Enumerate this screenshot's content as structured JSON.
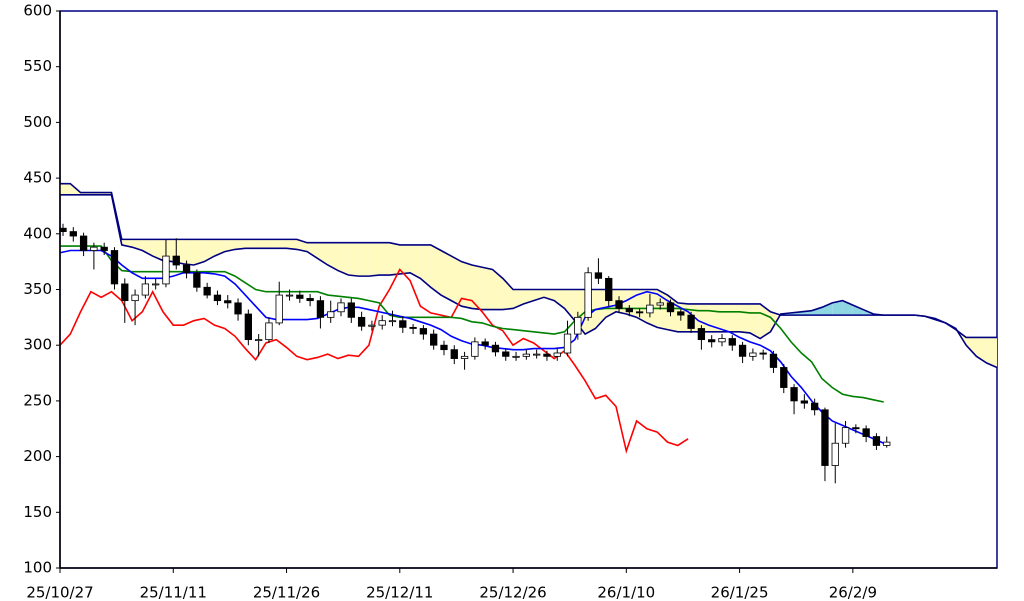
{
  "chart_data": {
    "type": "candlestick",
    "categories": [
      "25/10/27",
      null,
      null,
      null,
      null,
      null,
      null,
      null,
      null,
      null,
      null,
      "25/11/11",
      null,
      null,
      null,
      null,
      null,
      null,
      null,
      null,
      null,
      null,
      "25/11/26",
      null,
      null,
      null,
      null,
      null,
      null,
      null,
      null,
      null,
      null,
      "25/12/11",
      null,
      null,
      null,
      null,
      null,
      null,
      null,
      null,
      null,
      null,
      "25/12/26",
      null,
      null,
      null,
      null,
      null,
      null,
      null,
      null,
      null,
      null,
      "26/1/10",
      null,
      null,
      null,
      null,
      null,
      null,
      null,
      null,
      null,
      null,
      "26/1/25",
      null,
      null,
      null,
      null,
      null,
      null,
      null,
      null,
      null,
      null,
      "26/2/9",
      null,
      null,
      null,
      null,
      null,
      null,
      null,
      null,
      null,
      null,
      null,
      null,
      null,
      null
    ],
    "ylim": [
      100,
      600
    ],
    "yticks": [
      100,
      150,
      200,
      250,
      300,
      350,
      400,
      450,
      500,
      550,
      600
    ],
    "candles": {
      "up_color": "#ffffff",
      "down_color": "#000000",
      "edge_color": "#000000",
      "open": [
        405,
        402,
        398,
        385,
        388,
        385,
        355,
        340,
        345,
        355,
        355,
        380,
        372,
        365,
        352,
        345,
        340,
        338,
        328,
        305,
        305,
        320,
        345,
        345,
        342,
        340,
        325,
        330,
        338,
        325,
        317,
        318,
        322,
        322,
        316,
        315,
        310,
        300,
        296,
        288,
        290,
        303,
        300,
        294,
        290,
        290,
        292,
        292,
        290,
        293,
        310,
        325,
        365,
        360,
        340,
        333,
        330,
        329,
        336,
        338,
        330,
        327,
        315,
        305,
        303,
        306,
        300,
        290,
        293,
        292,
        280,
        262,
        250,
        248,
        242,
        192,
        212,
        226,
        225,
        218,
        210
      ],
      "high": [
        409,
        406,
        401,
        392,
        392,
        388,
        360,
        350,
        362,
        360,
        395,
        396,
        376,
        368,
        356,
        349,
        345,
        342,
        332,
        310,
        325,
        357,
        350,
        349,
        346,
        344,
        340,
        342,
        342,
        330,
        322,
        327,
        331,
        326,
        319,
        318,
        314,
        304,
        300,
        294,
        307,
        306,
        303,
        297,
        294,
        296,
        296,
        295,
        298,
        322,
        330,
        370,
        378,
        362,
        344,
        336,
        333,
        346,
        342,
        341,
        332,
        330,
        318,
        309,
        310,
        309,
        303,
        297,
        296,
        295,
        283,
        265,
        256,
        252,
        244,
        230,
        232,
        229,
        228,
        221,
        218
      ],
      "low": [
        398,
        393,
        380,
        368,
        381,
        350,
        320,
        318,
        342,
        350,
        352,
        368,
        360,
        348,
        342,
        336,
        333,
        322,
        300,
        290,
        302,
        318,
        340,
        338,
        335,
        315,
        320,
        326,
        320,
        313,
        313,
        314,
        317,
        311,
        310,
        305,
        296,
        291,
        283,
        278,
        287,
        296,
        290,
        286,
        286,
        287,
        288,
        286,
        286,
        290,
        305,
        322,
        355,
        335,
        329,
        326,
        325,
        325,
        332,
        326,
        322,
        311,
        296,
        298,
        299,
        295,
        284,
        286,
        287,
        275,
        257,
        238,
        243,
        237,
        178,
        176,
        208,
        221,
        213,
        206,
        208
      ],
      "close": [
        402,
        398,
        385,
        388,
        385,
        355,
        340,
        345,
        355,
        355,
        380,
        372,
        365,
        352,
        345,
        340,
        338,
        328,
        305,
        305,
        320,
        345,
        345,
        342,
        340,
        325,
        330,
        338,
        325,
        317,
        318,
        322,
        322,
        316,
        315,
        310,
        300,
        296,
        288,
        290,
        303,
        300,
        294,
        290,
        290,
        292,
        292,
        290,
        293,
        310,
        325,
        365,
        360,
        340,
        333,
        330,
        329,
        336,
        338,
        330,
        327,
        315,
        305,
        303,
        306,
        300,
        290,
        293,
        292,
        280,
        262,
        250,
        248,
        242,
        192,
        212,
        226,
        225,
        218,
        210,
        213
      ]
    },
    "lines": [
      {
        "color": "#ff0000",
        "values": [
          300,
          310,
          330,
          348,
          343,
          348,
          340,
          322,
          330,
          348,
          330,
          318,
          318,
          322,
          324,
          318,
          315,
          308,
          297,
          287,
          302,
          305,
          298,
          290,
          287,
          289,
          292,
          288,
          291,
          290,
          300,
          335,
          350,
          368,
          358,
          335,
          329,
          327,
          325,
          342,
          340,
          330,
          318,
          313,
          300,
          306,
          302,
          295,
          288,
          295,
          282,
          268,
          252,
          255,
          245,
          205,
          232,
          225,
          222,
          213,
          210,
          216
        ]
      },
      {
        "color": "#008000",
        "values": [
          389,
          389,
          389,
          389,
          389,
          376,
          367,
          366,
          366,
          366,
          366,
          366,
          366,
          366,
          366,
          366,
          366,
          362,
          356,
          350,
          348,
          348,
          348,
          348,
          348,
          348,
          345,
          344,
          343,
          342,
          340,
          338,
          327,
          325,
          325,
          325,
          325,
          325,
          325,
          324,
          321,
          320,
          317,
          315,
          314,
          313,
          312,
          311,
          310,
          312,
          322,
          330,
          332,
          333,
          333,
          333,
          333,
          333,
          333,
          333,
          333,
          332,
          331,
          331,
          330,
          330,
          330,
          329,
          329,
          325,
          315,
          303,
          293,
          285,
          270,
          262,
          256,
          254,
          253,
          251,
          249
        ]
      },
      {
        "color": "#0000ff",
        "values": [
          383,
          385,
          385,
          385,
          385,
          380,
          372,
          365,
          360,
          360,
          360,
          362,
          365,
          365,
          365,
          364,
          362,
          355,
          345,
          335,
          325,
          323,
          323,
          323,
          323,
          324,
          328,
          332,
          334,
          334,
          332,
          330,
          328,
          326,
          324,
          321,
          318,
          314,
          308,
          304,
          301,
          300,
          298,
          297,
          296,
          296,
          297,
          297,
          297,
          298,
          305,
          325,
          332,
          334,
          336,
          340,
          345,
          348,
          346,
          340,
          335,
          330,
          322,
          318,
          315,
          312,
          307,
          303,
          300,
          295,
          285,
          272,
          262,
          250,
          240,
          232,
          228,
          224,
          220,
          216,
          212
        ]
      }
    ],
    "cloud": {
      "line_color": "#000080",
      "up_color": "#8fd6e3",
      "down_color": "#fffac0",
      "span_a": [
        435,
        435,
        435,
        435,
        435,
        435,
        390,
        388,
        385,
        380,
        376,
        375,
        373,
        372,
        375,
        380,
        384,
        386,
        387,
        387,
        387,
        387,
        387,
        386,
        384,
        378,
        372,
        367,
        363,
        362,
        362,
        363,
        363,
        364,
        365,
        360,
        352,
        345,
        340,
        335,
        333,
        332,
        332,
        332,
        333,
        337,
        340,
        343,
        340,
        333,
        322,
        310,
        315,
        325,
        330,
        328,
        325,
        320,
        316,
        314,
        312,
        312,
        312,
        312,
        312,
        312,
        312,
        311,
        306,
        312,
        328,
        329,
        330,
        331,
        334,
        338,
        340,
        336,
        332,
        328,
        327,
        327,
        327,
        327,
        326,
        323,
        320,
        315,
        300,
        290,
        284,
        280
      ],
      "span_b": [
        445,
        445,
        437,
        437,
        437,
        437,
        395,
        395,
        395,
        395,
        395,
        395,
        395,
        395,
        395,
        395,
        395,
        395,
        395,
        395,
        395,
        395,
        395,
        395,
        392,
        392,
        392,
        392,
        392,
        392,
        392,
        392,
        392,
        390,
        390,
        390,
        390,
        385,
        380,
        375,
        372,
        370,
        368,
        360,
        350,
        350,
        350,
        350,
        350,
        350,
        350,
        350,
        350,
        350,
        350,
        350,
        350,
        350,
        350,
        345,
        338,
        337,
        337,
        337,
        337,
        337,
        337,
        337,
        337,
        330,
        327,
        327,
        327,
        327,
        327,
        327,
        327,
        327,
        327,
        327,
        327,
        327,
        327,
        327,
        326,
        324,
        320,
        314,
        307,
        307,
        307,
        307
      ]
    }
  }
}
